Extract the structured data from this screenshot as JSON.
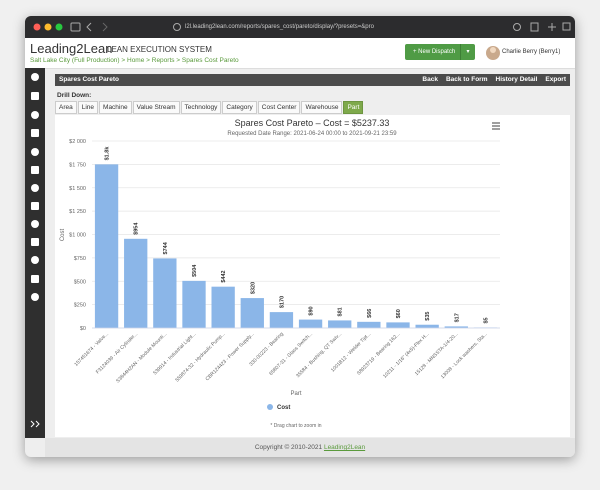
{
  "browser": {
    "url": "l2l.leading2lean.com/reports/spares_cost/pareto/display/?presets=&pro"
  },
  "header": {
    "logo": "Leading2Lean",
    "system": "LEAN EXECUTION SYSTEM",
    "breadcrumb": "Salt Lake City (Full Production) > Home > Reports > Spares Cost Pareto",
    "button": "+ New Dispatch",
    "user": "Charlie Berry (Berry1)"
  },
  "panel": {
    "title": "Spares Cost Pareto",
    "actions": [
      "Back",
      "Back to Form",
      "History Detail",
      "Export"
    ]
  },
  "drill": {
    "label": "Drill Down:",
    "tabs": [
      "Area",
      "Line",
      "Machine",
      "Value Stream",
      "Technology",
      "Category",
      "Cost Center",
      "Warehouse",
      "Part"
    ],
    "active": "Part"
  },
  "chart_data": {
    "type": "bar",
    "title": "Spares Cost Pareto – Cost = $5237.33",
    "subtitle": "Requested Date Range: 2021-06-24 00:00 to 2021-09-21 23:59",
    "x_label": "Part",
    "y_label": "Cost",
    "categories": [
      "157451674 - Valve...",
      "F3124039 - Air Cylinder...",
      "S3844H2AN - Module Mounti...",
      "539914 - Industrial Light...",
      "559874-32 - Hydraulic Pump...",
      "CBR124423 - Power Supply...",
      "330-00223 - Bearing",
      "65807-31 - Glass Switch...",
      "35584 - Bushing, QT Swiv...",
      "1001B12 - Welder Tipt...",
      "S8923719 - Bearing 162...",
      "10211 - 1/16\" (4x5)-Flex H...",
      "15128 - MNSSTA-1/4-20...",
      "13008 - Lock washers, Sta..."
    ],
    "series": [
      {
        "name": "Cost",
        "color": "#8bb6e8",
        "values": [
          1750,
          954,
          744,
          504,
          442,
          320,
          170,
          90,
          81,
          66,
          60,
          35,
          17,
          5
        ],
        "value_labels": [
          "$1.8k",
          "$954",
          "$744",
          "$504",
          "$442",
          "$320",
          "$170",
          "$90",
          "$81",
          "$66",
          "$60",
          "$35",
          "$17",
          "$5"
        ]
      }
    ],
    "ylim": [
      0,
      2000
    ],
    "yticks": [
      {
        "value": 0,
        "label": "$0"
      },
      {
        "value": 250,
        "label": "$250"
      },
      {
        "value": 500,
        "label": "$500"
      },
      {
        "value": 750,
        "label": "$750"
      },
      {
        "value": 1000,
        "label": "$1 000"
      },
      {
        "value": 1250,
        "label": "$1 250"
      },
      {
        "value": 1500,
        "label": "$1 500"
      },
      {
        "value": 1750,
        "label": "$1 750"
      },
      {
        "value": 2000,
        "label": "$2 000"
      }
    ],
    "grid": true,
    "note": "* Drag chart to zoom in"
  },
  "footer": {
    "text": "Copyright © 2010-2021",
    "link": "Leading2Lean"
  }
}
